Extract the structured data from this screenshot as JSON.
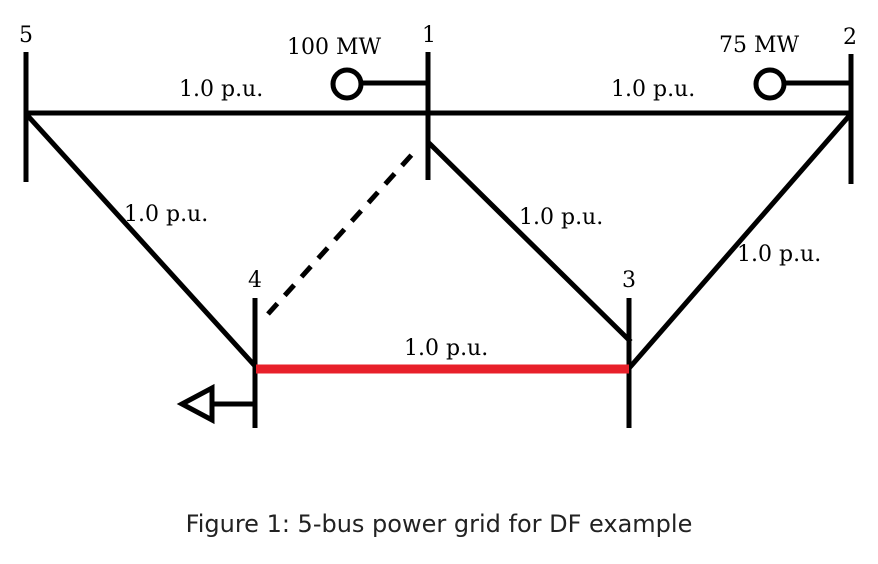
{
  "diagram": {
    "buses": [
      {
        "id": "1",
        "label": "1"
      },
      {
        "id": "2",
        "label": "2"
      },
      {
        "id": "3",
        "label": "3"
      },
      {
        "id": "4",
        "label": "4"
      },
      {
        "id": "5",
        "label": "5"
      }
    ],
    "generators": [
      {
        "bus": "1",
        "label": "100 MW"
      },
      {
        "bus": "2",
        "label": "75 MW"
      }
    ],
    "load": {
      "bus": "4"
    },
    "lines": [
      {
        "from": "5",
        "to": "1",
        "label": "1.0 p.u."
      },
      {
        "from": "1",
        "to": "2",
        "label": "1.0 p.u."
      },
      {
        "from": "5",
        "to": "4",
        "label": "1.0 p.u."
      },
      {
        "from": "1",
        "to": "3",
        "label": "1.0 p.u."
      },
      {
        "from": "2",
        "to": "3",
        "label": "1.0 p.u."
      },
      {
        "from": "4",
        "to": "3",
        "label": "1.0 p.u.",
        "highlight": true,
        "color": "#e8202a"
      },
      {
        "from": "4",
        "to": "1",
        "label": "",
        "style": "dashed"
      }
    ],
    "colors": {
      "line": "#000000",
      "highlight": "#e8202a"
    }
  },
  "caption": "Figure 1: 5-bus power grid for DF example"
}
